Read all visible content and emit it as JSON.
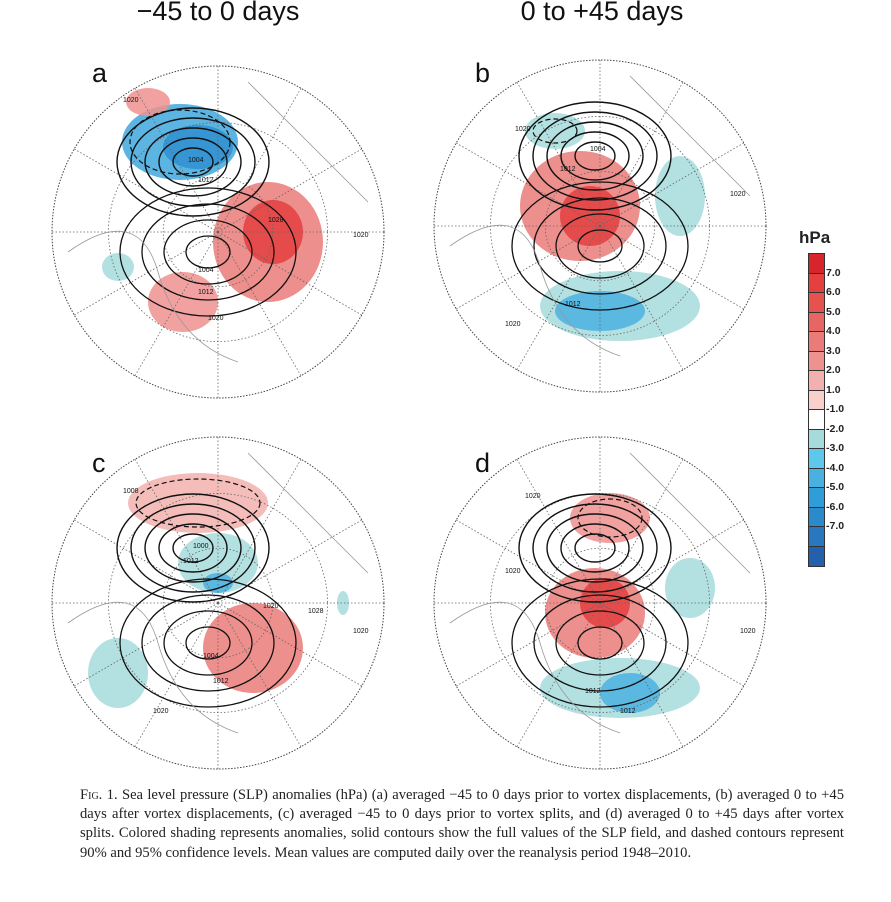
{
  "figure": {
    "column_titles": [
      "−45 to 0 days",
      "0 to +45 days"
    ],
    "panels": [
      {
        "label": "a",
        "contour_labels": [
          "1020",
          "1004",
          "1012",
          "1028",
          "1004",
          "1012",
          "1020",
          "1020"
        ]
      },
      {
        "label": "b",
        "contour_labels": [
          "1020",
          "1004",
          "1012",
          "1020",
          "1012",
          "1020"
        ]
      },
      {
        "label": "c",
        "contour_labels": [
          "1008",
          "1000",
          "1012",
          "1020",
          "1028",
          "1004",
          "1012",
          "1020",
          "1020"
        ]
      },
      {
        "label": "d",
        "contour_labels": [
          "1020",
          "1020",
          "1012",
          "1012",
          "1020"
        ]
      }
    ],
    "colorbar": {
      "unit": "hPa",
      "ticks": [
        "7.0",
        "6.0",
        "5.0",
        "4.0",
        "3.0",
        "2.0",
        "1.0",
        "-1.0",
        "-2.0",
        "-3.0",
        "-4.0",
        "-5.0",
        "-6.0",
        "-7.0"
      ],
      "colors": [
        "#d7262b",
        "#e4403f",
        "#e6534f",
        "#e76562",
        "#ea7b78",
        "#ee928f",
        "#f2b1ae",
        "#f9cfcc",
        "#ffffff",
        "#a6dbdc",
        "#5ec8ec",
        "#4ab0e0",
        "#2f9ed8",
        "#2b8acb",
        "#2877bf",
        "#2560ac"
      ]
    },
    "caption": {
      "prefix": "Fig. 1.",
      "text": " Sea level pressure (SLP) anomalies (hPa) (a) averaged −45 to 0 days prior to vortex displacements, (b) averaged 0 to +45 days after vortex displacements, (c) averaged −45 to 0 days prior to vortex splits, and (d) averaged 0 to +45 days after vortex splits. Colored shading represents anomalies, solid contours show the full values of the SLP field, and dashed contours represent 90% and 95% confidence levels. Mean values are computed daily over the reanalysis period 1948–2010."
    }
  }
}
